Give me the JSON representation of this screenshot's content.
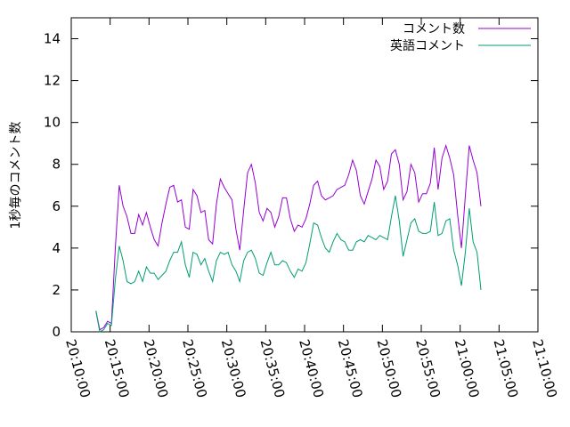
{
  "chart_data": {
    "type": "line",
    "title": "",
    "xlabel": "",
    "ylabel": "1秒毎のコメント数",
    "xlim": [
      "20:10:00",
      "21:10:00"
    ],
    "ylim": [
      0,
      15
    ],
    "x_ticks": [
      "20:10:00",
      "20:15:00",
      "20:20:00",
      "20:25:00",
      "20:30:00",
      "20:35:00",
      "20:40:00",
      "20:45:00",
      "20:50:00",
      "20:55:00",
      "21:00:00",
      "21:05:00",
      "21:10:00"
    ],
    "y_ticks": [
      "0",
      "2",
      "4",
      "6",
      "8",
      "10",
      "12",
      "14"
    ],
    "grid": false,
    "legend_position": "top-right",
    "x_start": "20:13:10",
    "x_step_seconds": 30,
    "series": [
      {
        "name": "コメント数",
        "color": "#9400d3",
        "values": [
          1.0,
          0.1,
          0.2,
          0.5,
          0.4,
          4.0,
          7.0,
          6.0,
          5.5,
          4.7,
          4.7,
          5.6,
          5.1,
          5.7,
          5.0,
          4.4,
          4.1,
          5.2,
          6.1,
          6.9,
          7.0,
          6.2,
          6.3,
          5.0,
          4.9,
          6.8,
          6.5,
          5.7,
          5.8,
          4.4,
          4.2,
          6.1,
          7.3,
          6.9,
          6.6,
          6.3,
          4.9,
          3.9,
          5.8,
          7.6,
          8.0,
          7.1,
          5.7,
          5.3,
          5.9,
          5.7,
          5.0,
          5.5,
          6.4,
          6.4,
          5.4,
          4.8,
          5.1,
          5.0,
          5.4,
          6.1,
          7.0,
          7.2,
          6.5,
          6.3,
          6.4,
          6.5,
          6.8,
          6.9,
          7.0,
          7.5,
          8.2,
          7.7,
          6.5,
          6.1,
          6.7,
          7.3,
          8.2,
          7.9,
          6.8,
          7.2,
          8.5,
          8.7,
          8.0,
          6.3,
          6.7,
          8.0,
          7.6,
          6.2,
          6.6,
          6.6,
          7.1,
          8.8,
          6.8,
          8.3,
          8.9,
          8.3,
          7.5,
          5.6,
          4.0,
          6.5,
          8.9,
          8.2,
          7.6,
          6.0
        ]
      },
      {
        "name": "英語コメント",
        "color": "#009e73",
        "values": [
          1.0,
          0.0,
          0.1,
          0.4,
          0.3,
          2.5,
          4.1,
          3.4,
          2.4,
          2.3,
          2.4,
          2.9,
          2.4,
          3.1,
          2.8,
          2.8,
          2.5,
          2.7,
          2.9,
          3.4,
          3.8,
          3.8,
          4.3,
          3.2,
          2.6,
          3.8,
          3.7,
          3.2,
          3.5,
          2.9,
          2.4,
          3.4,
          3.8,
          3.7,
          3.8,
          3.2,
          2.9,
          2.4,
          3.4,
          3.8,
          3.9,
          3.5,
          2.8,
          2.7,
          3.3,
          3.8,
          3.2,
          3.2,
          3.4,
          3.3,
          2.9,
          2.6,
          3.0,
          2.9,
          3.3,
          4.2,
          5.2,
          5.1,
          4.5,
          4.0,
          3.8,
          4.3,
          4.7,
          4.4,
          4.3,
          3.9,
          3.9,
          4.3,
          4.4,
          4.3,
          4.6,
          4.5,
          4.4,
          4.6,
          4.5,
          4.4,
          5.5,
          6.5,
          5.3,
          3.6,
          4.4,
          5.2,
          5.4,
          4.8,
          4.7,
          4.7,
          4.8,
          6.2,
          4.6,
          4.7,
          5.3,
          5.4,
          3.9,
          3.2,
          2.2,
          3.8,
          5.9,
          4.3,
          3.8,
          2.0
        ]
      }
    ]
  }
}
